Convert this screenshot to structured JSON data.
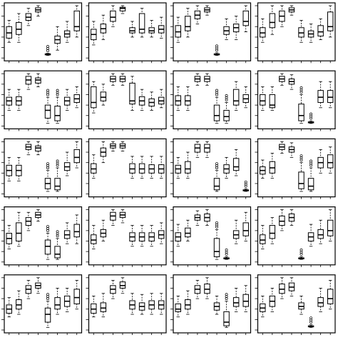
{
  "chart_data": {
    "type": "boxplot-grid",
    "rows": 5,
    "cols": 4,
    "boxes_per_panel": 8,
    "ylim": [
      0,
      1
    ],
    "panels": [
      {
        "boxes": [
          [
            0.3,
            0.38,
            0.48,
            0.6,
            0.72
          ],
          [
            0.3,
            0.45,
            0.55,
            0.68,
            0.85
          ],
          [
            0.62,
            0.72,
            0.78,
            0.85,
            0.95
          ],
          [
            0.8,
            0.88,
            0.92,
            0.96,
            1.0
          ],
          [
            0.05,
            0.06,
            0.07,
            0.08,
            0.09
          ],
          [
            0.15,
            0.28,
            0.35,
            0.42,
            0.6
          ],
          [
            0.3,
            0.4,
            0.46,
            0.52,
            0.7
          ],
          [
            0.4,
            0.52,
            0.6,
            0.9,
            1.0
          ]
        ]
      },
      {
        "boxes": [
          [
            0.25,
            0.35,
            0.45,
            0.55,
            0.7
          ],
          [
            0.35,
            0.48,
            0.56,
            0.65,
            0.82
          ],
          [
            0.6,
            0.7,
            0.78,
            0.9,
            1.0
          ],
          [
            0.85,
            0.9,
            0.95,
            0.97,
            1.0
          ],
          [
            0.4,
            0.48,
            0.52,
            0.58,
            0.7
          ],
          [
            0.4,
            0.48,
            0.55,
            0.85,
            0.95
          ],
          [
            0.4,
            0.48,
            0.52,
            0.58,
            0.72
          ],
          [
            0.38,
            0.48,
            0.55,
            0.62,
            0.78
          ]
        ]
      },
      {
        "boxes": [
          [
            0.3,
            0.4,
            0.5,
            0.62,
            0.78
          ],
          [
            0.4,
            0.52,
            0.6,
            0.8,
            0.95
          ],
          [
            0.65,
            0.75,
            0.82,
            0.9,
            1.0
          ],
          [
            0.82,
            0.88,
            0.92,
            0.96,
            1.0
          ],
          [
            0.05,
            0.06,
            0.07,
            0.08,
            0.1
          ],
          [
            0.35,
            0.45,
            0.52,
            0.6,
            0.75
          ],
          [
            0.35,
            0.5,
            0.58,
            0.65,
            0.8
          ],
          [
            0.5,
            0.62,
            0.7,
            0.9,
            1.0
          ]
        ]
      },
      {
        "boxes": [
          [
            0.3,
            0.4,
            0.48,
            0.58,
            0.75
          ],
          [
            0.45,
            0.58,
            0.68,
            0.85,
            1.0
          ],
          [
            0.6,
            0.7,
            0.8,
            0.9,
            1.0
          ],
          [
            0.82,
            0.88,
            0.92,
            0.96,
            1.0
          ],
          [
            0.3,
            0.4,
            0.48,
            0.58,
            0.72
          ],
          [
            0.3,
            0.4,
            0.46,
            0.52,
            0.65
          ],
          [
            0.35,
            0.42,
            0.5,
            0.62,
            0.75
          ],
          [
            0.4,
            0.52,
            0.6,
            0.88,
            1.0
          ]
        ]
      },
      {
        "boxes": [
          [
            0.3,
            0.4,
            0.48,
            0.55,
            0.7
          ],
          [
            0.3,
            0.4,
            0.48,
            0.56,
            0.7
          ],
          [
            0.7,
            0.8,
            0.88,
            0.95,
            1.0
          ],
          [
            0.75,
            0.82,
            0.88,
            0.92,
            1.0
          ],
          [
            0.05,
            0.15,
            0.3,
            0.4,
            0.55
          ],
          [
            0.05,
            0.1,
            0.2,
            0.38,
            0.55
          ],
          [
            0.3,
            0.4,
            0.48,
            0.55,
            0.7
          ],
          [
            0.35,
            0.45,
            0.52,
            0.6,
            0.75
          ]
        ]
      },
      {
        "boxes": [
          [
            0.25,
            0.35,
            0.45,
            0.75,
            0.85
          ],
          [
            0.4,
            0.48,
            0.55,
            0.65,
            0.8
          ],
          [
            0.78,
            0.85,
            0.9,
            0.95,
            1.0
          ],
          [
            0.78,
            0.85,
            0.9,
            0.95,
            1.0
          ],
          [
            0.3,
            0.42,
            0.48,
            0.82,
            0.95
          ],
          [
            0.3,
            0.4,
            0.48,
            0.56,
            0.7
          ],
          [
            0.3,
            0.38,
            0.45,
            0.52,
            0.65
          ],
          [
            0.35,
            0.42,
            0.48,
            0.55,
            0.7
          ]
        ]
      },
      {
        "boxes": [
          [
            0.3,
            0.4,
            0.48,
            0.58,
            0.75
          ],
          [
            0.3,
            0.4,
            0.48,
            0.58,
            0.75
          ],
          [
            0.78,
            0.85,
            0.9,
            0.95,
            1.0
          ],
          [
            0.78,
            0.85,
            0.9,
            0.95,
            1.0
          ],
          [
            0.05,
            0.1,
            0.2,
            0.4,
            0.55
          ],
          [
            0.05,
            0.1,
            0.18,
            0.3,
            0.45
          ],
          [
            0.3,
            0.4,
            0.48,
            0.7,
            0.85
          ],
          [
            0.35,
            0.45,
            0.52,
            0.6,
            0.75
          ]
        ]
      },
      {
        "boxes": [
          [
            0.3,
            0.4,
            0.48,
            0.6,
            0.75
          ],
          [
            0.3,
            0.35,
            0.4,
            0.6,
            0.75
          ],
          [
            0.78,
            0.85,
            0.9,
            0.95,
            1.0
          ],
          [
            0.7,
            0.8,
            0.85,
            0.9,
            0.98
          ],
          [
            0.05,
            0.1,
            0.2,
            0.42,
            0.6
          ],
          [
            0.05,
            0.06,
            0.07,
            0.08,
            0.1
          ],
          [
            0.35,
            0.45,
            0.55,
            0.68,
            0.85
          ],
          [
            0.35,
            0.45,
            0.55,
            0.68,
            0.85
          ]
        ]
      },
      {
        "boxes": [
          [
            0.25,
            0.35,
            0.45,
            0.55,
            0.7
          ],
          [
            0.25,
            0.35,
            0.45,
            0.55,
            0.7
          ],
          [
            0.75,
            0.85,
            0.9,
            0.95,
            1.0
          ],
          [
            0.75,
            0.82,
            0.88,
            0.92,
            1.0
          ],
          [
            0.05,
            0.1,
            0.2,
            0.3,
            0.45
          ],
          [
            0.05,
            0.08,
            0.15,
            0.3,
            0.5
          ],
          [
            0.35,
            0.45,
            0.52,
            0.6,
            0.8
          ],
          [
            0.5,
            0.6,
            0.7,
            0.85,
            1.0
          ]
        ]
      },
      {
        "boxes": [
          [
            0.3,
            0.4,
            0.48,
            0.58,
            0.75
          ],
          [
            0.6,
            0.72,
            0.8,
            0.88,
            1.0
          ],
          [
            0.82,
            0.88,
            0.92,
            0.96,
            1.0
          ],
          [
            0.82,
            0.88,
            0.92,
            0.96,
            1.0
          ],
          [
            0.3,
            0.4,
            0.48,
            0.58,
            0.72
          ],
          [
            0.3,
            0.4,
            0.48,
            0.58,
            0.72
          ],
          [
            0.3,
            0.4,
            0.48,
            0.56,
            0.72
          ],
          [
            0.3,
            0.4,
            0.48,
            0.56,
            0.72
          ]
        ]
      },
      {
        "boxes": [
          [
            0.3,
            0.4,
            0.48,
            0.55,
            0.7
          ],
          [
            0.3,
            0.4,
            0.48,
            0.62,
            0.8
          ],
          [
            0.7,
            0.8,
            0.88,
            0.95,
            1.0
          ],
          [
            0.7,
            0.8,
            0.88,
            0.95,
            1.0
          ],
          [
            0.05,
            0.08,
            0.15,
            0.3,
            0.45
          ],
          [
            0.3,
            0.4,
            0.48,
            0.56,
            0.7
          ],
          [
            0.35,
            0.45,
            0.52,
            0.68,
            0.85
          ],
          [
            0.05,
            0.06,
            0.07,
            0.08,
            0.1
          ]
        ]
      },
      {
        "boxes": [
          [
            0.3,
            0.38,
            0.45,
            0.52,
            0.65
          ],
          [
            0.3,
            0.4,
            0.5,
            0.62,
            0.78
          ],
          [
            0.78,
            0.85,
            0.9,
            0.95,
            1.0
          ],
          [
            0.7,
            0.8,
            0.85,
            0.9,
            0.98
          ],
          [
            0.05,
            0.1,
            0.2,
            0.42,
            0.6
          ],
          [
            0.05,
            0.08,
            0.15,
            0.3,
            0.5
          ],
          [
            0.4,
            0.5,
            0.6,
            0.7,
            0.85
          ],
          [
            0.4,
            0.5,
            0.6,
            0.75,
            0.9
          ]
        ]
      },
      {
        "boxes": [
          [
            0.25,
            0.35,
            0.45,
            0.55,
            0.7
          ],
          [
            0.3,
            0.4,
            0.55,
            0.75,
            0.95
          ],
          [
            0.6,
            0.7,
            0.78,
            0.85,
            0.95
          ],
          [
            0.78,
            0.85,
            0.9,
            0.95,
            1.0
          ],
          [
            0.05,
            0.15,
            0.3,
            0.42,
            0.55
          ],
          [
            0.05,
            0.08,
            0.15,
            0.3,
            0.45
          ],
          [
            0.35,
            0.45,
            0.52,
            0.6,
            0.75
          ],
          [
            0.35,
            0.48,
            0.58,
            0.72,
            0.9
          ]
        ]
      },
      {
        "boxes": [
          [
            0.25,
            0.35,
            0.42,
            0.52,
            0.7
          ],
          [
            0.4,
            0.48,
            0.55,
            0.62,
            0.8
          ],
          [
            0.7,
            0.8,
            0.88,
            0.95,
            1.0
          ],
          [
            0.75,
            0.85,
            0.9,
            0.95,
            1.0
          ],
          [
            0.3,
            0.4,
            0.48,
            0.56,
            0.7
          ],
          [
            0.3,
            0.4,
            0.48,
            0.56,
            0.7
          ],
          [
            0.3,
            0.4,
            0.48,
            0.56,
            0.7
          ],
          [
            0.35,
            0.45,
            0.52,
            0.6,
            0.75
          ]
        ]
      },
      {
        "boxes": [
          [
            0.3,
            0.4,
            0.48,
            0.56,
            0.72
          ],
          [
            0.4,
            0.48,
            0.55,
            0.65,
            0.8
          ],
          [
            0.7,
            0.8,
            0.85,
            0.9,
            0.98
          ],
          [
            0.7,
            0.78,
            0.85,
            0.92,
            1.0
          ],
          [
            0.05,
            0.1,
            0.2,
            0.45,
            0.62
          ],
          [
            0.05,
            0.06,
            0.07,
            0.08,
            0.1
          ],
          [
            0.35,
            0.45,
            0.52,
            0.6,
            0.8
          ],
          [
            0.4,
            0.5,
            0.6,
            0.75,
            0.95
          ]
        ]
      },
      {
        "boxes": [
          [
            0.25,
            0.35,
            0.42,
            0.52,
            0.7
          ],
          [
            0.35,
            0.45,
            0.55,
            0.7,
            0.85
          ],
          [
            0.6,
            0.7,
            0.78,
            0.88,
            1.0
          ],
          [
            0.7,
            0.78,
            0.85,
            0.92,
            1.0
          ],
          [
            0.05,
            0.06,
            0.07,
            0.08,
            0.1
          ],
          [
            0.3,
            0.4,
            0.48,
            0.56,
            0.72
          ],
          [
            0.35,
            0.45,
            0.52,
            0.62,
            0.8
          ],
          [
            0.4,
            0.5,
            0.6,
            0.8,
            1.0
          ]
        ]
      },
      {
        "boxes": [
          [
            0.25,
            0.32,
            0.4,
            0.48,
            0.62
          ],
          [
            0.3,
            0.4,
            0.48,
            0.58,
            0.75
          ],
          [
            0.6,
            0.7,
            0.78,
            0.85,
            0.95
          ],
          [
            0.7,
            0.8,
            0.85,
            0.9,
            1.0
          ],
          [
            0.05,
            0.15,
            0.3,
            0.42,
            0.55
          ],
          [
            0.3,
            0.4,
            0.48,
            0.62,
            0.8
          ],
          [
            0.35,
            0.45,
            0.55,
            0.65,
            0.8
          ],
          [
            0.4,
            0.5,
            0.62,
            0.78,
            0.95
          ]
        ]
      },
      {
        "boxes": [
          [
            0.25,
            0.32,
            0.4,
            0.5,
            0.65
          ],
          [
            0.25,
            0.35,
            0.42,
            0.52,
            0.7
          ],
          [
            0.6,
            0.7,
            0.78,
            0.85,
            0.95
          ],
          [
            0.7,
            0.8,
            0.85,
            0.92,
            1.0
          ],
          [
            0.3,
            0.4,
            0.48,
            0.56,
            0.7
          ],
          [
            0.3,
            0.38,
            0.45,
            0.52,
            0.68
          ],
          [
            0.3,
            0.4,
            0.48,
            0.56,
            0.7
          ],
          [
            0.3,
            0.4,
            0.48,
            0.56,
            0.7
          ]
        ]
      },
      {
        "boxes": [
          [
            0.25,
            0.35,
            0.4,
            0.5,
            0.65
          ],
          [
            0.3,
            0.4,
            0.48,
            0.58,
            0.75
          ],
          [
            0.6,
            0.7,
            0.78,
            0.85,
            0.95
          ],
          [
            0.6,
            0.7,
            0.78,
            0.88,
            1.0
          ],
          [
            0.3,
            0.38,
            0.45,
            0.52,
            0.65
          ],
          [
            0.05,
            0.08,
            0.15,
            0.35,
            0.55
          ],
          [
            0.35,
            0.45,
            0.52,
            0.62,
            0.8
          ],
          [
            0.35,
            0.45,
            0.55,
            0.68,
            0.85
          ]
        ]
      },
      {
        "boxes": [
          [
            0.25,
            0.35,
            0.42,
            0.5,
            0.65
          ],
          [
            0.35,
            0.45,
            0.55,
            0.65,
            0.8
          ],
          [
            0.6,
            0.7,
            0.78,
            0.88,
            1.0
          ],
          [
            0.65,
            0.75,
            0.82,
            0.9,
            1.0
          ],
          [
            0.3,
            0.4,
            0.45,
            0.52,
            0.65
          ],
          [
            0.05,
            0.06,
            0.07,
            0.08,
            0.1
          ],
          [
            0.35,
            0.45,
            0.52,
            0.62,
            0.8
          ],
          [
            0.4,
            0.5,
            0.6,
            0.78,
            0.95
          ]
        ]
      }
    ]
  }
}
